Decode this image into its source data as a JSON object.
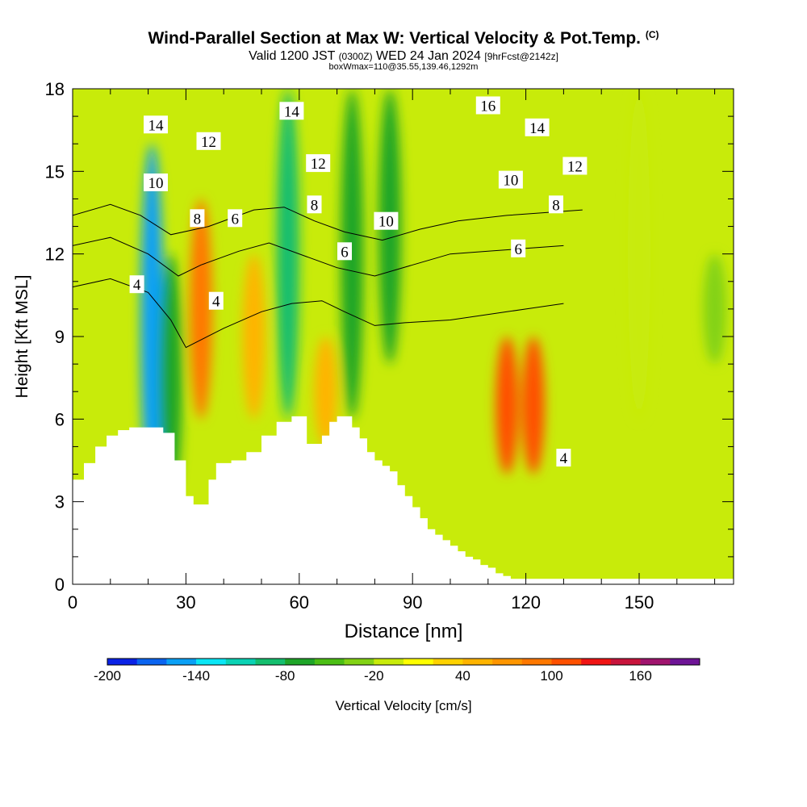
{
  "header": {
    "title": "Wind-Parallel Section at Max W: Vertical Velocity & Pot.Temp.",
    "copyright": "(C)",
    "valid_prefix": "Valid 1200 JST",
    "valid_utc": "(0300Z)",
    "valid_date": "WED 24 Jan 2024",
    "forecast": "[9hrFcst@2142z]",
    "box_info": "boxWmax=110@35.55,139.46,1292m"
  },
  "chart_data": {
    "type": "heatmap",
    "xlabel": "Distance [nm]",
    "ylabel": "Height [Kft MSL]",
    "xlim": [
      0,
      175
    ],
    "ylim": [
      0,
      18
    ],
    "x_ticks": [
      0,
      30,
      60,
      90,
      120,
      150
    ],
    "y_ticks": [
      0,
      3,
      6,
      9,
      12,
      15,
      18
    ],
    "colorbar": {
      "label": "Vertical Velocity [cm/s]",
      "range": [
        -200,
        200
      ],
      "tick_values": [
        -200,
        -140,
        -80,
        -20,
        40,
        100,
        160
      ],
      "tick_labels": [
        "-200",
        "-140",
        "-80",
        "-20",
        "40",
        "100",
        "160"
      ],
      "colors": [
        "#0a22e6",
        "#0a64f0",
        "#0aa0f5",
        "#0ae6f5",
        "#0ad2b4",
        "#14be6e",
        "#1ea528",
        "#4bbe14",
        "#82d214",
        "#c8eb0a",
        "#ffff00",
        "#ffd200",
        "#ffb400",
        "#ff9600",
        "#ff7800",
        "#ff5000",
        "#f01414",
        "#c8143c",
        "#a0146e",
        "#6e1496"
      ]
    },
    "velocity_features": [
      {
        "x": 21,
        "ymin": 3,
        "ymax": 16,
        "w": -150
      },
      {
        "x": 26,
        "ymin": 3,
        "ymax": 12,
        "w": -80
      },
      {
        "x": 34,
        "ymin": 6,
        "ymax": 14,
        "w": 90
      },
      {
        "x": 48,
        "ymin": 6,
        "ymax": 12,
        "w": 40
      },
      {
        "x": 57,
        "ymin": 6,
        "ymax": 18,
        "w": -90
      },
      {
        "x": 67,
        "ymin": 5,
        "ymax": 9,
        "w": 40
      },
      {
        "x": 74,
        "ymin": 6,
        "ymax": 18,
        "w": -80
      },
      {
        "x": 84,
        "ymin": 8,
        "ymax": 18,
        "w": -80
      },
      {
        "x": 115,
        "ymin": 4,
        "ymax": 9,
        "w": 110
      },
      {
        "x": 122,
        "ymin": 4,
        "ymax": 9,
        "w": 110
      },
      {
        "x": 150,
        "ymin": 6,
        "ymax": 18,
        "w": -20
      },
      {
        "x": 170,
        "ymin": 8,
        "ymax": 12,
        "w": -40
      }
    ],
    "terrain": {
      "x": [
        0,
        3,
        6,
        9,
        12,
        15,
        18,
        21,
        24,
        27,
        30,
        32,
        34,
        36,
        38,
        42,
        46,
        50,
        54,
        58,
        60,
        62,
        64,
        66,
        68,
        70,
        72,
        74,
        76,
        78,
        80,
        82,
        84,
        86,
        88,
        90,
        92,
        94,
        96,
        98,
        100,
        102,
        104,
        106,
        108,
        110,
        112,
        114,
        116,
        118,
        120,
        122,
        175
      ],
      "height": [
        3.8,
        4.4,
        5.0,
        5.4,
        5.6,
        5.7,
        5.7,
        5.7,
        5.5,
        4.5,
        3.2,
        2.9,
        2.9,
        3.8,
        4.4,
        4.5,
        4.8,
        5.4,
        5.9,
        6.1,
        6.1,
        5.1,
        5.1,
        5.4,
        5.9,
        6.1,
        6.1,
        5.7,
        5.3,
        4.8,
        4.5,
        4.3,
        4.1,
        3.6,
        3.2,
        2.8,
        2.4,
        2.0,
        1.8,
        1.6,
        1.4,
        1.2,
        1.0,
        0.9,
        0.7,
        0.6,
        0.4,
        0.3,
        0.2,
        0.2,
        0.2,
        0.2,
        0.2
      ]
    },
    "theta_contours": [
      {
        "label": "4",
        "x": [
          0,
          10,
          20,
          26,
          30,
          40,
          50,
          58,
          66,
          72,
          80,
          88,
          100,
          115,
          130
        ],
        "y": [
          10.8,
          11.1,
          10.6,
          9.6,
          8.6,
          9.3,
          9.9,
          10.2,
          10.3,
          9.9,
          9.4,
          9.5,
          9.6,
          9.9,
          10.2
        ]
      },
      {
        "label": "6",
        "x": [
          0,
          10,
          20,
          28,
          34,
          44,
          52,
          62,
          70,
          80,
          90,
          100,
          110,
          120,
          130
        ],
        "y": [
          12.3,
          12.6,
          12.0,
          11.2,
          11.6,
          12.1,
          12.4,
          11.9,
          11.5,
          11.2,
          11.6,
          12.0,
          12.1,
          12.2,
          12.3
        ]
      },
      {
        "label": "8",
        "x": [
          0,
          10,
          18,
          26,
          36,
          48,
          56,
          64,
          72,
          82,
          92,
          102,
          115,
          125,
          135
        ],
        "y": [
          13.4,
          13.8,
          13.4,
          12.7,
          13.0,
          13.6,
          13.7,
          13.2,
          12.8,
          12.5,
          12.9,
          13.2,
          13.4,
          13.5,
          13.6
        ]
      }
    ],
    "theta_labels": [
      {
        "text": "14",
        "x": 22,
        "y": 16.7
      },
      {
        "text": "12",
        "x": 36,
        "y": 16.1
      },
      {
        "text": "14",
        "x": 58,
        "y": 17.2
      },
      {
        "text": "16",
        "x": 110,
        "y": 17.4
      },
      {
        "text": "14",
        "x": 123,
        "y": 16.6
      },
      {
        "text": "10",
        "x": 22,
        "y": 14.6
      },
      {
        "text": "12",
        "x": 65,
        "y": 15.3
      },
      {
        "text": "12",
        "x": 133,
        "y": 15.2
      },
      {
        "text": "10",
        "x": 116,
        "y": 14.7
      },
      {
        "text": "8",
        "x": 33,
        "y": 13.3
      },
      {
        "text": "6",
        "x": 43,
        "y": 13.3
      },
      {
        "text": "8",
        "x": 64,
        "y": 13.8
      },
      {
        "text": "10",
        "x": 83,
        "y": 13.2
      },
      {
        "text": "8",
        "x": 128,
        "y": 13.8
      },
      {
        "text": "6",
        "x": 72,
        "y": 12.1
      },
      {
        "text": "6",
        "x": 118,
        "y": 12.2
      },
      {
        "text": "4",
        "x": 17,
        "y": 10.9
      },
      {
        "text": "4",
        "x": 38,
        "y": 10.3
      },
      {
        "text": "4",
        "x": 130,
        "y": 4.6
      }
    ]
  }
}
